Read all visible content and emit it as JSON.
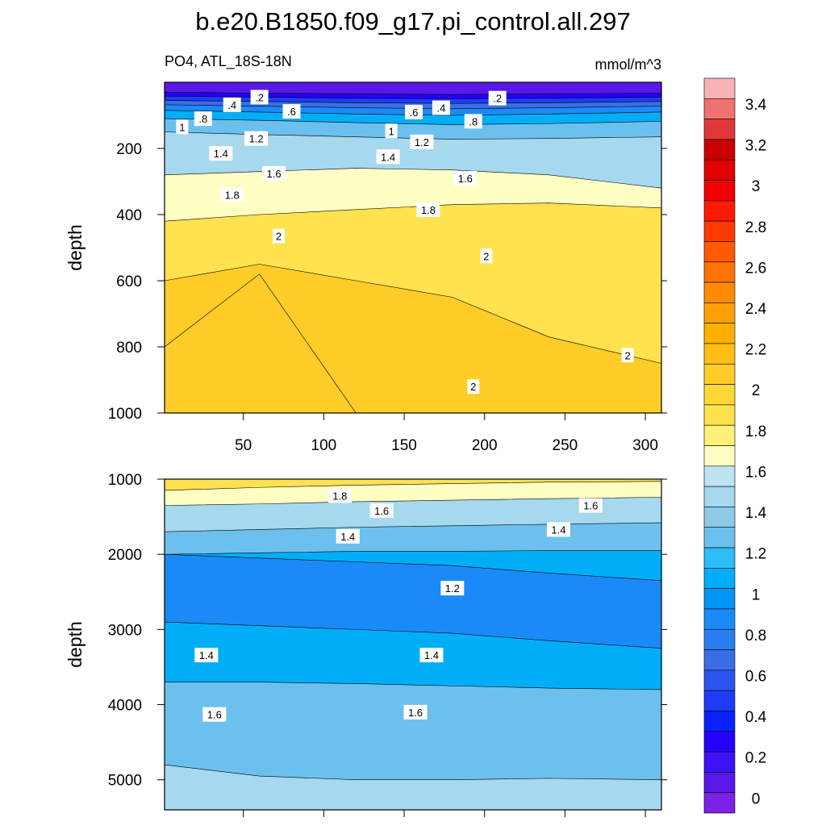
{
  "chart_data": {
    "type": "contour",
    "title": "b.e20.B1850.f09_g17.pi_control.all.297",
    "variable_label": "PO4, ATL_18S-18N",
    "units_label": "mmol/m^3",
    "x_ticks": [
      50,
      100,
      150,
      200,
      250,
      300
    ],
    "xlim": [
      1,
      310
    ],
    "panels": [
      {
        "name": "upper-ocean",
        "ylabel": "depth",
        "ylim": [
          0,
          1000
        ],
        "y_ticks": [
          200,
          400,
          600,
          800,
          1000
        ],
        "bands": [
          {
            "level": 0.2,
            "depth": [
              30,
              33,
              35,
              37,
              35,
              33
            ]
          },
          {
            "level": 0.4,
            "depth": [
              42,
              45,
              48,
              50,
              48,
              45
            ]
          },
          {
            "level": 0.6,
            "depth": [
              55,
              58,
              62,
              64,
              62,
              58
            ]
          },
          {
            "level": 0.8,
            "depth": [
              68,
              72,
              77,
              80,
              77,
              72
            ]
          },
          {
            "level": 1.0,
            "depth": [
              85,
              90,
              96,
              100,
              96,
              90
            ]
          },
          {
            "level": 1.2,
            "depth": [
              110,
              115,
              122,
              128,
              125,
              118
            ]
          },
          {
            "level": 1.4,
            "depth": [
              150,
              158,
              165,
              172,
              170,
              165
            ]
          },
          {
            "level": 1.6,
            "depth": [
              280,
              270,
              260,
              265,
              280,
              320
            ]
          },
          {
            "level": 1.8,
            "depth": [
              420,
              400,
              385,
              370,
              365,
              380
            ]
          },
          {
            "level": 2.0,
            "depth": [
              600,
              550,
              600,
              650,
              770,
              850
            ]
          },
          {
            "level": 2.2,
            "depth": [
              800,
              580,
              1000,
              1000,
              1000,
              1000
            ]
          },
          {
            "level": 2.2,
            "depth": [
              1000,
              1000,
              1000,
              1000,
              1000,
              1000
            ]
          }
        ],
        "contour_labels": [
          {
            "text": ".2",
            "x": 60,
            "y": 45
          },
          {
            "text": ".4",
            "x": 43,
            "y": 68
          },
          {
            "text": ".8",
            "x": 25,
            "y": 110
          },
          {
            "text": "1",
            "x": 12,
            "y": 135
          },
          {
            "text": ".6",
            "x": 80,
            "y": 88
          },
          {
            "text": "1.2",
            "x": 58,
            "y": 170
          },
          {
            "text": "1.4",
            "x": 36,
            "y": 215
          },
          {
            "text": "1.6",
            "x": 69,
            "y": 275
          },
          {
            "text": "1.8",
            "x": 43,
            "y": 340
          },
          {
            "text": "2",
            "x": 72,
            "y": 465
          },
          {
            "text": ".6",
            "x": 156,
            "y": 90
          },
          {
            "text": ".4",
            "x": 173,
            "y": 77
          },
          {
            "text": ".2",
            "x": 208,
            "y": 48
          },
          {
            "text": ".8",
            "x": 193,
            "y": 118
          },
          {
            "text": "1",
            "x": 142,
            "y": 147
          },
          {
            "text": "1.2",
            "x": 161,
            "y": 180
          },
          {
            "text": "1.4",
            "x": 140,
            "y": 225
          },
          {
            "text": "1.6",
            "x": 188,
            "y": 290
          },
          {
            "text": "1.8",
            "x": 165,
            "y": 385
          },
          {
            "text": "2",
            "x": 201,
            "y": 525
          },
          {
            "text": "2",
            "x": 289,
            "y": 825
          },
          {
            "text": "2",
            "x": 193,
            "y": 920
          }
        ]
      },
      {
        "name": "deep-ocean",
        "ylabel": "depth",
        "ylim": [
          1000,
          5400
        ],
        "y_ticks": [
          1000,
          2000,
          3000,
          4000,
          5000
        ],
        "bands": [
          {
            "level": 2.0,
            "depth": [
              1150,
              1110,
              1080,
              1060,
              1040,
              1030
            ]
          },
          {
            "level": 1.8,
            "depth": [
              1350,
              1330,
              1300,
              1280,
              1260,
              1240
            ]
          },
          {
            "level": 1.6,
            "depth": [
              1700,
              1670,
              1640,
              1620,
              1600,
              1580
            ]
          },
          {
            "level": 1.4,
            "depth": [
              2000,
              1980,
              1960,
              1960,
              1950,
              1950
            ]
          },
          {
            "level": 1.2,
            "depth": [
              2000,
              2050,
              2100,
              2150,
              2250,
              2350
            ]
          },
          {
            "level": 1.0,
            "depth": [
              2900,
              2950,
              3000,
              3050,
              3150,
              3250
            ]
          },
          {
            "level": 1.2,
            "depth": [
              3700,
              3700,
              3720,
              3750,
              3780,
              3800
            ]
          },
          {
            "level": 1.4,
            "depth": [
              4800,
              4950,
              5000,
              5000,
              4980,
              5000
            ]
          },
          {
            "level": 1.6,
            "depth": [
              5400,
              5400,
              5400,
              5400,
              5400,
              5400
            ]
          }
        ],
        "contour_labels": [
          {
            "text": "1.8",
            "x": 110,
            "y": 1220
          },
          {
            "text": "1.6",
            "x": 136,
            "y": 1420
          },
          {
            "text": "1.6",
            "x": 266,
            "y": 1350
          },
          {
            "text": "1.4",
            "x": 115,
            "y": 1760
          },
          {
            "text": "1.4",
            "x": 246,
            "y": 1670
          },
          {
            "text": "1.2",
            "x": 180,
            "y": 2450
          },
          {
            "text": "1.4",
            "x": 27,
            "y": 3340
          },
          {
            "text": "1.4",
            "x": 167,
            "y": 3340
          },
          {
            "text": "1.6",
            "x": 32,
            "y": 4130
          },
          {
            "text": "1.6",
            "x": 157,
            "y": 4100
          }
        ]
      }
    ],
    "colorbar": {
      "labels": [
        "0",
        "0.2",
        "0.4",
        "0.6",
        "0.8",
        "1",
        "1.2",
        "1.4",
        "1.6",
        "1.8",
        "2",
        "2.2",
        "2.4",
        "2.6",
        "2.8",
        "3",
        "3.2",
        "3.4"
      ],
      "boxes": [
        {
          "level": 3.6,
          "color": "#f8b3b8"
        },
        {
          "level": 3.5,
          "color": "#ee7272"
        },
        {
          "level": 3.4,
          "color": "#e03838"
        },
        {
          "level": 3.3,
          "color": "#c80000"
        },
        {
          "level": 3.2,
          "color": "#e00000"
        },
        {
          "level": 3.1,
          "color": "#f00000"
        },
        {
          "level": 3.0,
          "color": "#ff1a00"
        },
        {
          "level": 2.9,
          "color": "#ff3a00"
        },
        {
          "level": 2.8,
          "color": "#ff5a00"
        },
        {
          "level": 2.7,
          "color": "#ff7400"
        },
        {
          "level": 2.6,
          "color": "#ff8c00"
        },
        {
          "level": 2.5,
          "color": "#ffa000"
        },
        {
          "level": 2.4,
          "color": "#ffb000"
        },
        {
          "level": 2.3,
          "color": "#ffbe14"
        },
        {
          "level": 2.2,
          "color": "#ffcc28"
        },
        {
          "level": 2.1,
          "color": "#ffd838"
        },
        {
          "level": 2.0,
          "color": "#ffe24e"
        },
        {
          "level": 1.9,
          "color": "#fff07a"
        },
        {
          "level": 1.8,
          "color": "#ffffc4"
        },
        {
          "level": 1.7,
          "color": "#bee4f2"
        },
        {
          "level": 1.6,
          "color": "#a6d8ee"
        },
        {
          "level": 1.5,
          "color": "#8ccae8"
        },
        {
          "level": 1.4,
          "color": "#6cc0ee"
        },
        {
          "level": 1.3,
          "color": "#2cbef8"
        },
        {
          "level": 1.2,
          "color": "#00aef8"
        },
        {
          "level": 1.1,
          "color": "#0096f8"
        },
        {
          "level": 1.0,
          "color": "#1a8af8"
        },
        {
          "level": 0.9,
          "color": "#2a7ef0"
        },
        {
          "level": 0.8,
          "color": "#3a6ee6"
        },
        {
          "level": 0.7,
          "color": "#2e54ee"
        },
        {
          "level": 0.6,
          "color": "#1e3cf8"
        },
        {
          "level": 0.5,
          "color": "#0a22ff"
        },
        {
          "level": 0.4,
          "color": "#2400ff"
        },
        {
          "level": 0.3,
          "color": "#3e10f4"
        },
        {
          "level": 0.2,
          "color": "#5a18e8"
        },
        {
          "level": 0.1,
          "color": "#7c22e4"
        }
      ]
    },
    "colors": {
      "1.2_deep": "#2cbef8",
      "1.0_deep": "#00aef8",
      "2.0": "#ffe24e",
      "2.2": "#ffcc28",
      "1.8": "#fff07a",
      "1.6_light": "#ffffc4",
      "1.4": "#8ccae8"
    }
  }
}
